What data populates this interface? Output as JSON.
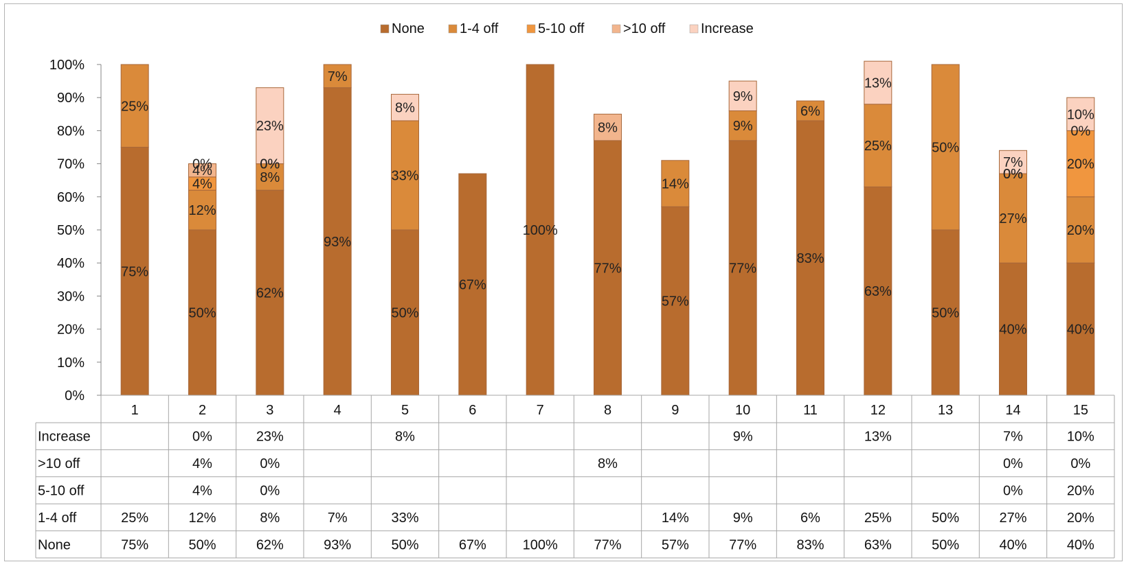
{
  "chart_data": {
    "type": "bar",
    "stacked": true,
    "categories": [
      "1",
      "2",
      "3",
      "4",
      "5",
      "6",
      "7",
      "8",
      "9",
      "10",
      "11",
      "12",
      "13",
      "14",
      "15"
    ],
    "series": [
      {
        "name": "None",
        "color": "#b86c2e",
        "values": [
          75,
          50,
          62,
          93,
          50,
          67,
          100,
          77,
          57,
          77,
          83,
          63,
          50,
          40,
          40
        ],
        "labels": [
          "75%",
          "50%",
          "62%",
          "93%",
          "50%",
          "67%",
          "100%",
          "77%",
          "57%",
          "77%",
          "83%",
          "63%",
          "50%",
          "40%",
          "40%"
        ]
      },
      {
        "name": "1-4 off",
        "color": "#da8a3a",
        "values": [
          25,
          12,
          8,
          7,
          33,
          0,
          0,
          0,
          14,
          9,
          6,
          25,
          50,
          27,
          20
        ],
        "labels": [
          "25%",
          "12%",
          "8%",
          "7%",
          "33%",
          "",
          "",
          "",
          "14%",
          "9%",
          "6%",
          "25%",
          "50%",
          "27%",
          "20%"
        ]
      },
      {
        "name": "5-10 off",
        "color": "#f0963f",
        "values": [
          0,
          4,
          0,
          0,
          0,
          0,
          0,
          0,
          0,
          0,
          0,
          0,
          0,
          0,
          20
        ],
        "labels": [
          "",
          "4%",
          "0%",
          "",
          "",
          "",
          "",
          "",
          "",
          "",
          "",
          "",
          "",
          "0%",
          "20%"
        ]
      },
      {
        "name": ">10 off",
        "color": "#f2b58d",
        "values": [
          0,
          4,
          0,
          0,
          0,
          0,
          0,
          8,
          0,
          0,
          0,
          0,
          0,
          0,
          0
        ],
        "labels": [
          "",
          "4%",
          "0%",
          "",
          "",
          "",
          "",
          "8%",
          "",
          "",
          "",
          "",
          "",
          "0%",
          "0%"
        ]
      },
      {
        "name": "Increase",
        "color": "#fbd2c0",
        "values": [
          0,
          0,
          23,
          0,
          8,
          0,
          0,
          0,
          0,
          9,
          0,
          13,
          0,
          7,
          10
        ],
        "labels": [
          "",
          "0%",
          "23%",
          "",
          "8%",
          "",
          "",
          "",
          "",
          "9%",
          "",
          "13%",
          "",
          "7%",
          "10%"
        ]
      }
    ],
    "ylim": [
      0,
      100
    ],
    "yticks": [
      "0%",
      "10%",
      "20%",
      "30%",
      "40%",
      "50%",
      "60%",
      "70%",
      "80%",
      "90%",
      "100%"
    ],
    "legend_position": "top-center",
    "data_table": true,
    "table_row_order": [
      "Increase",
      ">10 off",
      "5-10 off",
      "1-4 off",
      "None"
    ]
  }
}
